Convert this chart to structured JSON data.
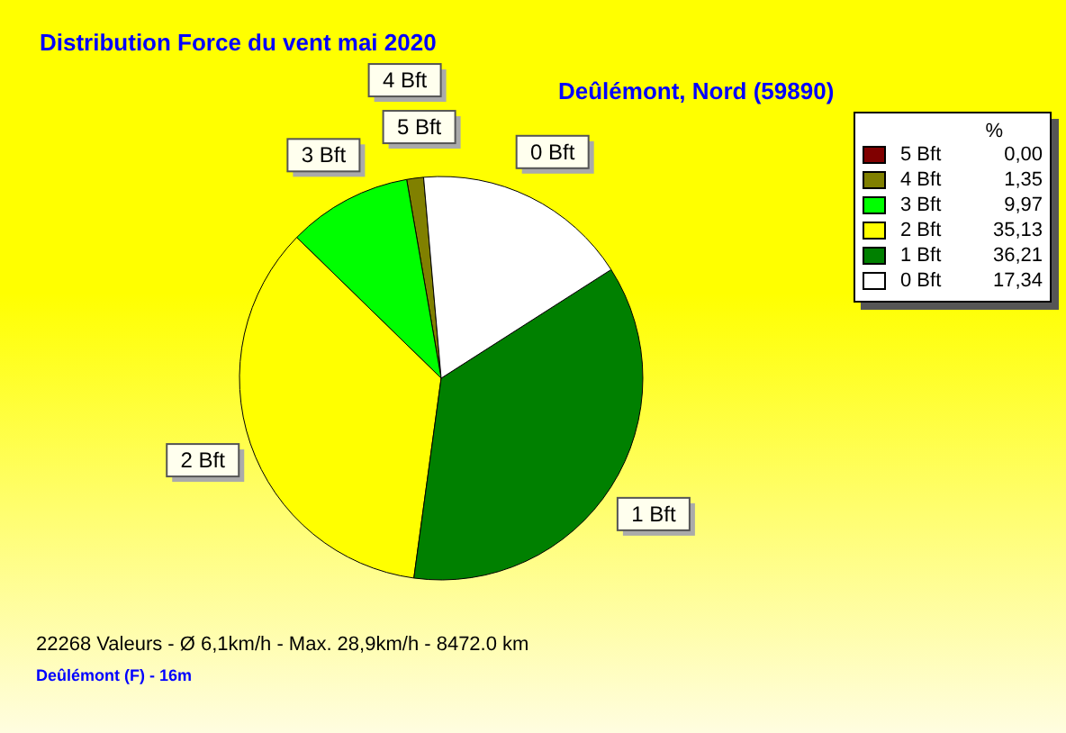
{
  "chart_data": {
    "type": "pie",
    "title": "Distribution Force du vent  mai 2020",
    "subtitle": "Deûlémont, Nord (59890)",
    "categories": [
      "5 Bft",
      "4 Bft",
      "3 Bft",
      "2 Bft",
      "1 Bft",
      "0 Bft"
    ],
    "values": [
      0,
      1.35,
      9.97,
      35.13,
      36.21,
      17.34
    ],
    "value_labels": [
      "0,00",
      "1,35",
      "9,97",
      "35,13",
      "36,21",
      "17,34"
    ],
    "colors": [
      "#800000",
      "#808000",
      "#00ff00",
      "#ffff00",
      "#008000",
      "#ffffff"
    ],
    "legend": "top right",
    "legend_title": "%",
    "annotations": [
      "22268 Valeurs   -   Ø 6,1km/h  -  Max. 28,9km/h   -   8472.0 km",
      "Deûlémont (F) - 16m"
    ]
  }
}
